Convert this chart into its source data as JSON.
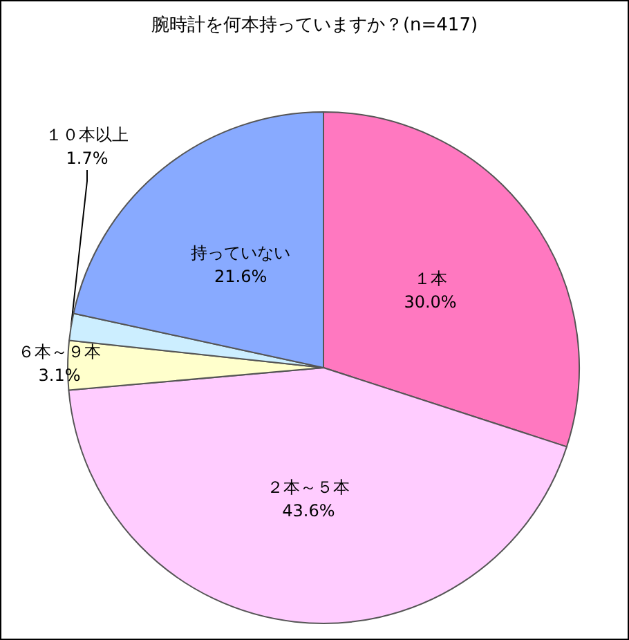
{
  "chart_data": {
    "type": "pie",
    "title": "腕時計を何本持っていますか？(n=417)",
    "categories": [
      "１本",
      "２本～５本",
      "６本～９本",
      "１０本以上",
      "持っていない"
    ],
    "values": [
      30.0,
      43.6,
      3.1,
      1.7,
      21.6
    ],
    "value_labels": [
      "30.0%",
      "43.6%",
      "3.1%",
      "1.7%",
      "21.6%"
    ],
    "colors": [
      "#ff78c0",
      "#ffccff",
      "#ffffcc",
      "#cceeff",
      "#88aaff"
    ],
    "legend": false
  }
}
